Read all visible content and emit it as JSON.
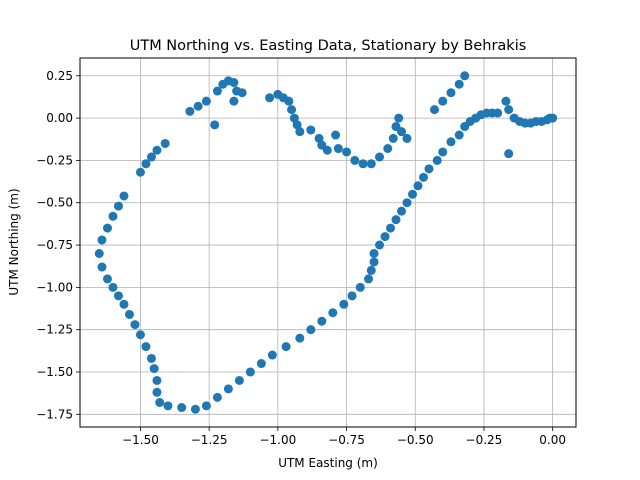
{
  "chart_data": {
    "type": "scatter",
    "title": "UTM Northing vs. Easting Data, Stationary by Behrakis",
    "xlabel": "UTM Easting (m)",
    "ylabel": "UTM Northing (m)",
    "xlim": [
      -1.72,
      0.085
    ],
    "ylim": [
      -1.825,
      0.355
    ],
    "xticks": [
      -1.5,
      -1.25,
      -1.0,
      -0.75,
      -0.5,
      -0.25,
      0.0
    ],
    "yticks": [
      -1.75,
      -1.5,
      -1.25,
      -1.0,
      -0.75,
      -0.5,
      -0.25,
      0.0,
      0.25
    ],
    "xtick_labels": [
      "−1.50",
      "−1.25",
      "−1.00",
      "−0.75",
      "−0.50",
      "−0.25",
      "0.00"
    ],
    "ytick_labels": [
      "−1.75",
      "−1.50",
      "−1.25",
      "−1.00",
      "−0.75",
      "−0.50",
      "−0.25",
      "0.00",
      "0.25"
    ],
    "grid": true,
    "marker_color": "#1f77b4",
    "points": [
      [
        0.0,
        0.0
      ],
      [
        -0.01,
        0.0
      ],
      [
        -0.02,
        -0.01
      ],
      [
        -0.04,
        -0.02
      ],
      [
        -0.06,
        -0.02
      ],
      [
        -0.08,
        -0.03
      ],
      [
        -0.1,
        -0.03
      ],
      [
        -0.12,
        -0.02
      ],
      [
        -0.14,
        0.0
      ],
      [
        -0.16,
        0.05
      ],
      [
        -0.17,
        0.1
      ],
      [
        -0.16,
        -0.21
      ],
      [
        -0.2,
        0.03
      ],
      [
        -0.22,
        0.03
      ],
      [
        -0.24,
        0.03
      ],
      [
        -0.26,
        0.02
      ],
      [
        -0.28,
        0.0
      ],
      [
        -0.3,
        -0.02
      ],
      [
        -0.32,
        -0.05
      ],
      [
        -0.34,
        -0.1
      ],
      [
        -0.37,
        -0.14
      ],
      [
        -0.4,
        -0.2
      ],
      [
        -0.42,
        -0.25
      ],
      [
        -0.45,
        -0.3
      ],
      [
        -0.47,
        -0.35
      ],
      [
        -0.49,
        -0.4
      ],
      [
        -0.51,
        -0.45
      ],
      [
        -0.53,
        -0.5
      ],
      [
        -0.55,
        -0.55
      ],
      [
        -0.57,
        -0.6
      ],
      [
        -0.59,
        -0.65
      ],
      [
        -0.61,
        -0.7
      ],
      [
        -0.63,
        -0.75
      ],
      [
        -0.65,
        -0.8
      ],
      [
        -0.65,
        -0.85
      ],
      [
        -0.66,
        -0.9
      ],
      [
        -0.67,
        -0.95
      ],
      [
        -0.7,
        -1.0
      ],
      [
        -0.73,
        -1.05
      ],
      [
        -0.76,
        -1.1
      ],
      [
        -0.8,
        -1.15
      ],
      [
        -0.84,
        -1.2
      ],
      [
        -0.88,
        -1.25
      ],
      [
        -0.92,
        -1.3
      ],
      [
        -0.97,
        -1.35
      ],
      [
        -1.02,
        -1.4
      ],
      [
        -1.06,
        -1.45
      ],
      [
        -1.1,
        -1.5
      ],
      [
        -1.14,
        -1.55
      ],
      [
        -1.18,
        -1.6
      ],
      [
        -1.22,
        -1.65
      ],
      [
        -1.26,
        -1.7
      ],
      [
        -1.3,
        -1.72
      ],
      [
        -1.35,
        -1.71
      ],
      [
        -1.4,
        -1.7
      ],
      [
        -1.43,
        -1.68
      ],
      [
        -1.44,
        -1.62
      ],
      [
        -1.44,
        -1.55
      ],
      [
        -1.45,
        -1.48
      ],
      [
        -1.46,
        -1.42
      ],
      [
        -1.48,
        -1.35
      ],
      [
        -1.5,
        -1.28
      ],
      [
        -1.52,
        -1.22
      ],
      [
        -1.54,
        -1.16
      ],
      [
        -1.56,
        -1.1
      ],
      [
        -1.58,
        -1.05
      ],
      [
        -1.6,
        -1.0
      ],
      [
        -1.62,
        -0.95
      ],
      [
        -1.64,
        -0.88
      ],
      [
        -1.65,
        -0.8
      ],
      [
        -1.64,
        -0.72
      ],
      [
        -1.62,
        -0.65
      ],
      [
        -1.6,
        -0.58
      ],
      [
        -1.58,
        -0.52
      ],
      [
        -1.56,
        -0.46
      ],
      [
        -1.5,
        -0.32
      ],
      [
        -1.48,
        -0.27
      ],
      [
        -1.46,
        -0.23
      ],
      [
        -1.44,
        -0.19
      ],
      [
        -1.41,
        -0.15
      ],
      [
        -1.32,
        0.04
      ],
      [
        -1.29,
        0.07
      ],
      [
        -1.26,
        0.1
      ],
      [
        -1.23,
        -0.04
      ],
      [
        -1.22,
        0.16
      ],
      [
        -1.2,
        0.2
      ],
      [
        -1.18,
        0.22
      ],
      [
        -1.16,
        0.21
      ],
      [
        -1.15,
        0.16
      ],
      [
        -1.16,
        0.1
      ],
      [
        -1.13,
        0.15
      ],
      [
        -1.03,
        0.12
      ],
      [
        -1.0,
        0.14
      ],
      [
        -0.98,
        0.12
      ],
      [
        -0.96,
        0.1
      ],
      [
        -0.95,
        0.05
      ],
      [
        -0.94,
        0.0
      ],
      [
        -0.93,
        -0.04
      ],
      [
        -0.92,
        -0.08
      ],
      [
        -0.88,
        -0.07
      ],
      [
        -0.85,
        -0.12
      ],
      [
        -0.84,
        -0.16
      ],
      [
        -0.82,
        -0.19
      ],
      [
        -0.79,
        -0.1
      ],
      [
        -0.78,
        -0.18
      ],
      [
        -0.75,
        -0.2
      ],
      [
        -0.72,
        -0.25
      ],
      [
        -0.69,
        -0.27
      ],
      [
        -0.66,
        -0.27
      ],
      [
        -0.63,
        -0.23
      ],
      [
        -0.6,
        -0.18
      ],
      [
        -0.58,
        -0.12
      ],
      [
        -0.57,
        -0.05
      ],
      [
        -0.56,
        0.0
      ],
      [
        -0.55,
        -0.08
      ],
      [
        -0.53,
        -0.12
      ],
      [
        -0.43,
        0.05
      ],
      [
        -0.4,
        0.1
      ],
      [
        -0.37,
        0.15
      ],
      [
        -0.34,
        0.2
      ],
      [
        -0.32,
        0.25
      ]
    ]
  }
}
